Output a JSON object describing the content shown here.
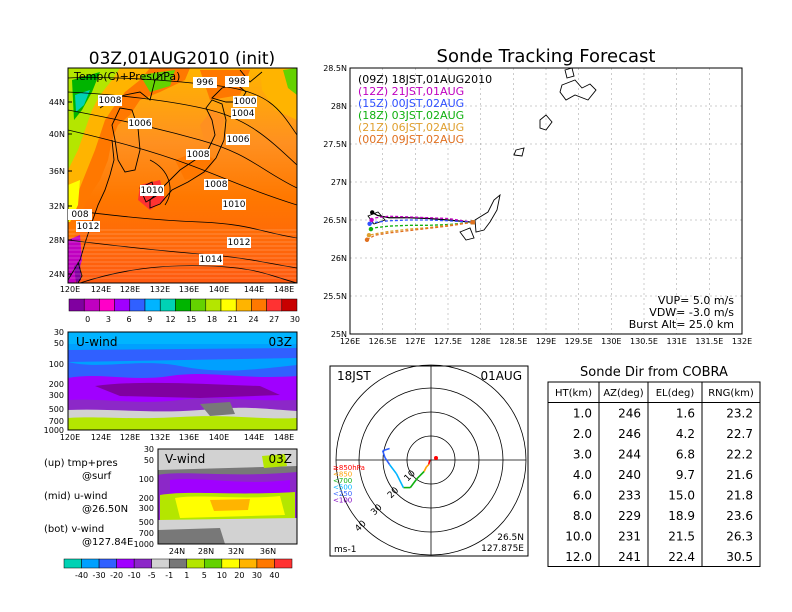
{
  "colors": {
    "land": "#ffffff",
    "coast": "#000000",
    "track_colors": [
      "#000000",
      "#c000c0",
      "#3050ff",
      "#10b010",
      "#e0a030",
      "#e07020"
    ],
    "temp_scale": [
      "#8000a0",
      "#c000c0",
      "#ff00c8",
      "#a000ff",
      "#3060ff",
      "#00b4ff",
      "#00d2b4",
      "#00b400",
      "#64d200",
      "#b4e600",
      "#ffff00",
      "#ffb400",
      "#ff7800",
      "#ff3232",
      "#c80000"
    ],
    "wind_scale": [
      "#00d2b4",
      "#00a0ff",
      "#3060ff",
      "#a000ff",
      "#8c28c8",
      "#d2d2d2",
      "#787878",
      "#b4e600",
      "#64d200",
      "#ffff00",
      "#ffb400",
      "#ff7800",
      "#ff3232"
    ]
  },
  "left_map": {
    "title": "03Z,01AUG2010 (init)",
    "label": "Temp(C)+Pres(hPa)",
    "lat_ticks": [
      "44N",
      "40N",
      "36N",
      "32N",
      "28N",
      "24N"
    ],
    "lon_ticks": [
      "120E",
      "124E",
      "128E",
      "132E",
      "136E",
      "140E",
      "144E",
      "148E"
    ],
    "isobar_labels": [
      "998",
      "996",
      "1000",
      "1004",
      "1008",
      "1006",
      "1006",
      "1008",
      "1008",
      "1010",
      "1010",
      "1012",
      "1012",
      "1014",
      "008"
    ],
    "colorbar_ticks": [
      "0",
      "3",
      "6",
      "9",
      "12",
      "15",
      "18",
      "21",
      "24",
      "27",
      "30"
    ]
  },
  "u_panel": {
    "label": "U-wind",
    "time": "03Z",
    "y_ticks": [
      "30",
      "50",
      "100",
      "200",
      "300",
      "500",
      "700",
      "1000"
    ],
    "x_ticks": [
      "120E",
      "124E",
      "128E",
      "132E",
      "136E",
      "140E",
      "144E",
      "148E"
    ]
  },
  "v_panel": {
    "label": "V-wind",
    "time": "03Z",
    "y_ticks": [
      "30",
      "50",
      "100",
      "200",
      "300",
      "500",
      "700",
      "1000"
    ],
    "x_ticks": [
      "24N",
      "28N",
      "32N",
      "36N"
    ],
    "colorbar_ticks": [
      "-40",
      "-30",
      "-20",
      "-10",
      "-5",
      "-1",
      "1",
      "5",
      "10",
      "20",
      "30",
      "40"
    ]
  },
  "legend_notes": [
    "(up) tmp+pres",
    "@surf",
    "(mid) u-wind",
    "@26.50N",
    "(bot) v-wind",
    "@127.84E"
  ],
  "chart_data": {
    "type": "line",
    "title": "Sonde Tracking Forecast",
    "xlabel": "",
    "ylabel": "",
    "x_ticks": [
      "126E",
      "126.5E",
      "127E",
      "127.5E",
      "128E",
      "128.5E",
      "129E",
      "129.5E",
      "130E",
      "130.5E",
      "131E",
      "131.5E",
      "132E"
    ],
    "y_ticks": [
      "28.5N",
      "28N",
      "27.5N",
      "27N",
      "26.5N",
      "26N",
      "25.5N",
      "25N"
    ],
    "xlim": [
      126,
      132
    ],
    "ylim": [
      25,
      28.5
    ],
    "grid": true,
    "legend_position": "top-left",
    "series": [
      {
        "name": "(09Z)  18JST,01AUG2010",
        "x": [
          127.88,
          127.5,
          127.2,
          126.9,
          126.6,
          126.42,
          126.34
        ],
        "y": [
          26.47,
          26.5,
          26.52,
          26.53,
          26.53,
          26.56,
          26.6
        ]
      },
      {
        "name": "(12Z)  21JST,01AUG",
        "x": [
          127.88,
          127.5,
          127.2,
          126.9,
          126.6,
          126.4,
          126.33
        ],
        "y": [
          26.47,
          26.52,
          26.53,
          26.54,
          26.55,
          26.53,
          26.5
        ]
      },
      {
        "name": "(15Z)  00JST,02AUG",
        "x": [
          127.88,
          127.5,
          127.2,
          126.9,
          126.6,
          126.4,
          126.3
        ],
        "y": [
          26.47,
          26.49,
          26.5,
          26.5,
          26.49,
          26.47,
          26.45
        ]
      },
      {
        "name": "(18Z)  03JST,02AUG",
        "x": [
          127.88,
          127.5,
          127.2,
          126.9,
          126.6,
          126.4,
          126.32
        ],
        "y": [
          26.47,
          26.44,
          26.43,
          26.43,
          26.42,
          26.4,
          26.38
        ]
      },
      {
        "name": "(21Z)  06JST,02AUG",
        "x": [
          127.88,
          127.5,
          127.2,
          126.9,
          126.6,
          126.4,
          126.29
        ],
        "y": [
          26.47,
          26.43,
          26.4,
          26.38,
          26.35,
          26.32,
          26.3
        ]
      },
      {
        "name": "(00Z)  09JST,02AUG",
        "x": [
          127.88,
          127.5,
          127.2,
          126.9,
          126.6,
          126.38,
          126.26
        ],
        "y": [
          26.47,
          26.42,
          26.39,
          26.36,
          26.33,
          26.3,
          26.24
        ]
      }
    ],
    "annotations": [
      "VUP=  5.0  m/s",
      "VDW=  -3.0  m/s",
      "Burst Alt=  25.0  km"
    ]
  },
  "polar": {
    "time_label": "18JST",
    "date_label": "01AUG",
    "unit_label": "ms-1",
    "location": [
      "26.5N",
      "127.875E"
    ],
    "ring_labels": [
      "10",
      "20",
      "30",
      "40"
    ],
    "level_labels": [
      "≥850hPa",
      "<850",
      "<700",
      "<500",
      "<250",
      "<100"
    ],
    "level_colors": [
      "#ff0000",
      "#ffa000",
      "#10b010",
      "#00b4ff",
      "#3060ff",
      "#8000c0"
    ],
    "hodograph": {
      "u": [
        0.5,
        1,
        2,
        3,
        6,
        9,
        12,
        15,
        18,
        20,
        21,
        18
      ],
      "v": [
        0,
        -2,
        -3,
        -5,
        -8,
        -12,
        -12,
        -6,
        -2,
        1,
        4,
        5
      ]
    }
  },
  "table": {
    "title": "Sonde Dir from COBRA",
    "headers": [
      "HT(km)",
      "AZ(deg)",
      "EL(deg)",
      "RNG(km)"
    ],
    "rows": [
      [
        "1.0",
        "246",
        "1.6",
        "23.2"
      ],
      [
        "2.0",
        "246",
        "4.2",
        "22.7"
      ],
      [
        "3.0",
        "244",
        "6.8",
        "22.2"
      ],
      [
        "4.0",
        "240",
        "9.7",
        "21.6"
      ],
      [
        "6.0",
        "233",
        "15.0",
        "21.8"
      ],
      [
        "8.0",
        "229",
        "18.9",
        "23.6"
      ],
      [
        "10.0",
        "231",
        "21.5",
        "26.3"
      ],
      [
        "12.0",
        "241",
        "22.4",
        "30.5"
      ]
    ]
  }
}
